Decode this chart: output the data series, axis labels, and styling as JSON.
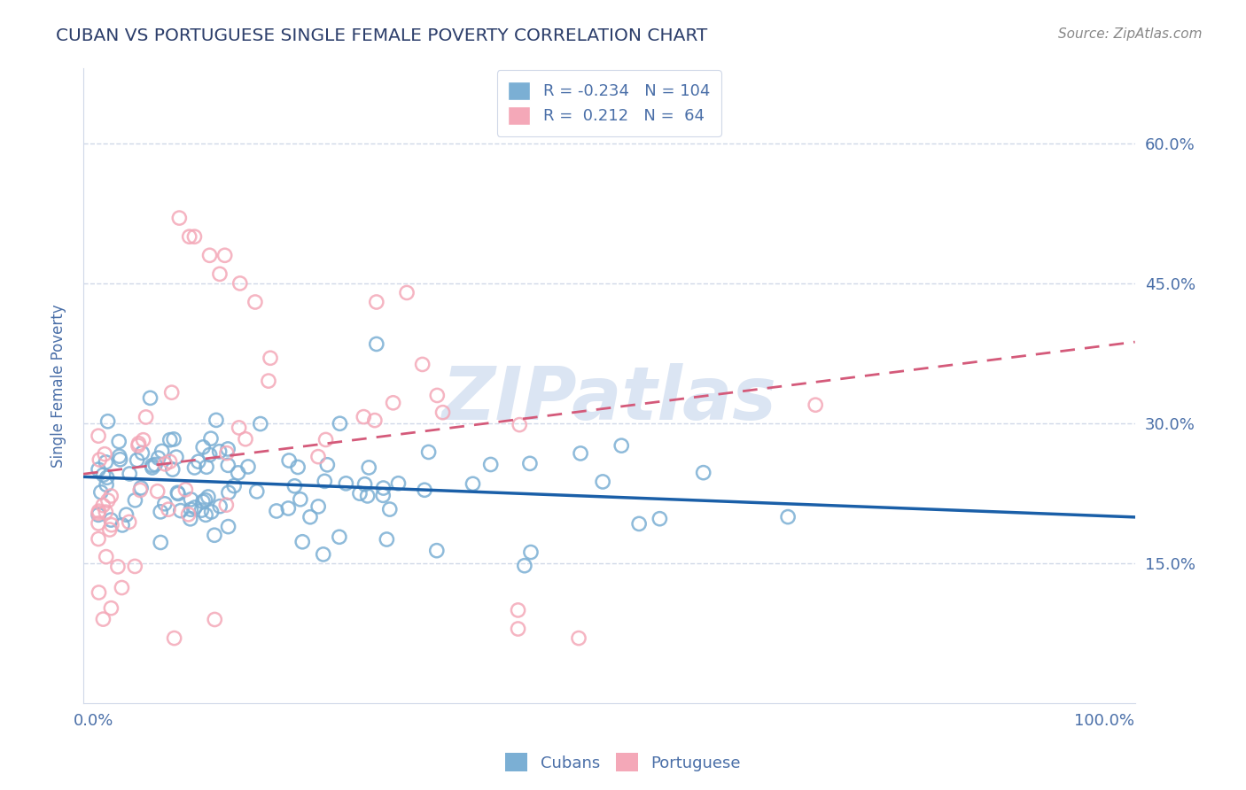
{
  "title": "CUBAN VS PORTUGUESE SINGLE FEMALE POVERTY CORRELATION CHART",
  "source": "Source: ZipAtlas.com",
  "ylabel": "Single Female Poverty",
  "ytick_labels": [
    "15.0%",
    "30.0%",
    "45.0%",
    "60.0%"
  ],
  "ytick_values": [
    0.15,
    0.3,
    0.45,
    0.6
  ],
  "xlim": [
    -0.01,
    1.03
  ],
  "ylim": [
    0.0,
    0.68
  ],
  "legend_cubans_R": "-0.234",
  "legend_cubans_N": "104",
  "legend_portuguese_R": "0.212",
  "legend_portuguese_N": "64",
  "legend_label_cubans": "Cubans",
  "legend_label_portuguese": "Portuguese",
  "color_cubans": "#7bafd4",
  "color_portuguese": "#f4a8b8",
  "color_trendline_cubans": "#1a5fa8",
  "color_trendline_portuguese": "#d45a7a",
  "background_color": "#ffffff",
  "grid_color": "#d0d8e8",
  "title_color": "#2c3e6b",
  "source_color": "#888888",
  "tick_color": "#4a6fa8",
  "watermark": "ZIPatlas",
  "watermark_color": "#ccdaee"
}
